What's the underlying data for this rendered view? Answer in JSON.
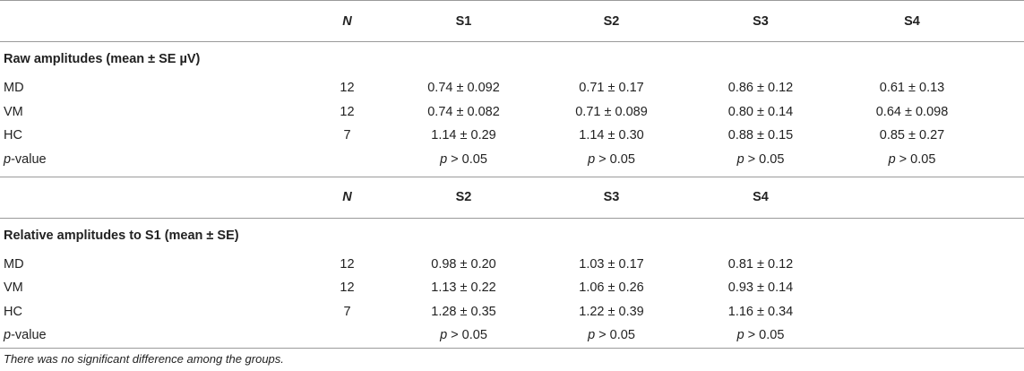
{
  "table1": {
    "header": {
      "n": "N",
      "cols": [
        "S1",
        "S2",
        "S3",
        "S4"
      ]
    },
    "section": "Raw amplitudes (mean ± SE µV)",
    "rows": [
      {
        "label": "MD",
        "n": "12",
        "vals": [
          "0.74 ± 0.092",
          "0.71 ± 0.17",
          "0.86 ± 0.12",
          "0.61 ± 0.13"
        ]
      },
      {
        "label": "VM",
        "n": "12",
        "vals": [
          "0.74 ± 0.082",
          "0.71 ± 0.089",
          "0.80 ± 0.14",
          "0.64 ± 0.098"
        ]
      },
      {
        "label": "HC",
        "n": "7",
        "vals": [
          "1.14 ± 0.29",
          "1.14 ± 0.30",
          "0.88 ± 0.15",
          "0.85 ± 0.27"
        ]
      }
    ],
    "pvalue": {
      "label_italic": "p",
      "label_rest": "-value",
      "vals_italic": [
        "p",
        "p",
        "p",
        "p"
      ],
      "vals_rest": [
        " > 0.05",
        " > 0.05",
        " > 0.05",
        " > 0.05"
      ]
    }
  },
  "table2": {
    "header": {
      "n": "N",
      "cols": [
        "S2",
        "S3",
        "S4"
      ]
    },
    "section": "Relative amplitudes to S1 (mean ± SE)",
    "rows": [
      {
        "label": "MD",
        "n": "12",
        "vals": [
          "0.98 ± 0.20",
          "1.03 ± 0.17",
          "0.81 ± 0.12"
        ]
      },
      {
        "label": "VM",
        "n": "12",
        "vals": [
          "1.13 ± 0.22",
          "1.06 ± 0.26",
          "0.93 ± 0.14"
        ]
      },
      {
        "label": "HC",
        "n": "7",
        "vals": [
          "1.28 ± 0.35",
          "1.22 ± 0.39",
          "1.16 ± 0.34"
        ]
      }
    ],
    "pvalue": {
      "label_italic": "p",
      "label_rest": "-value",
      "vals_italic": [
        "p",
        "p",
        "p"
      ],
      "vals_rest": [
        " > 0.05",
        " > 0.05",
        " > 0.05"
      ]
    }
  },
  "footnote": "There was no significant difference among the groups."
}
